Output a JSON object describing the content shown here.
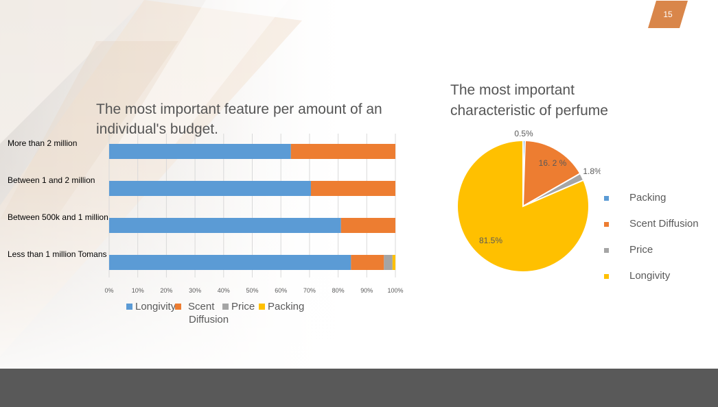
{
  "slide": {
    "page_number": "15",
    "accent_color": "#D9864A",
    "footer_color": "#595959"
  },
  "chart_data": [
    {
      "type": "bar",
      "stacked": "percent",
      "orientation": "horizontal",
      "title": "The most important feature per amount of an individual's budget.",
      "categories": [
        "More than 2 million",
        "Between 1 and 2 million",
        "Between 500k and 1 million",
        "Less than 1 million Tomans"
      ],
      "series": [
        {
          "name": "Longivity",
          "color": "#5B9BD5",
          "values": [
            63.5,
            70.5,
            81,
            84.5
          ]
        },
        {
          "name": "Scent Diffusion",
          "color": "#ED7D31",
          "values": [
            36.5,
            29.5,
            19,
            11.5
          ]
        },
        {
          "name": "Price",
          "color": "#A5A5A5",
          "values": [
            0,
            0,
            0,
            3
          ]
        },
        {
          "name": "Packing",
          "color": "#FFC000",
          "values": [
            0,
            0,
            0,
            1
          ]
        }
      ],
      "xticks": [
        "0%",
        "10%",
        "20%",
        "30%",
        "40%",
        "50%",
        "60%",
        "70%",
        "80%",
        "90%",
        "100%"
      ],
      "xlim": [
        0,
        100
      ],
      "grid": true,
      "legend": "bottom",
      "legend_labels": {
        "longivity": "Longivity",
        "scent_line1": "Scent",
        "scent_line2": "Diffusion",
        "price": "Price",
        "packing": "Packing"
      }
    },
    {
      "type": "pie",
      "title": "The most important characteristic of perfume",
      "slices": [
        {
          "name": "Packing",
          "value": 0.5,
          "label": "0.5%",
          "color": "#5B9BD5"
        },
        {
          "name": "Scent Diffusion",
          "value": 16.2,
          "label": "16. 2 %",
          "color": "#ED7D31"
        },
        {
          "name": "Price",
          "value": 1.8,
          "label": "1.8%",
          "color": "#A5A5A5"
        },
        {
          "name": "Longivity",
          "value": 81.5,
          "label": "81.5%",
          "color": "#FFC000"
        }
      ],
      "legend": "right"
    }
  ]
}
